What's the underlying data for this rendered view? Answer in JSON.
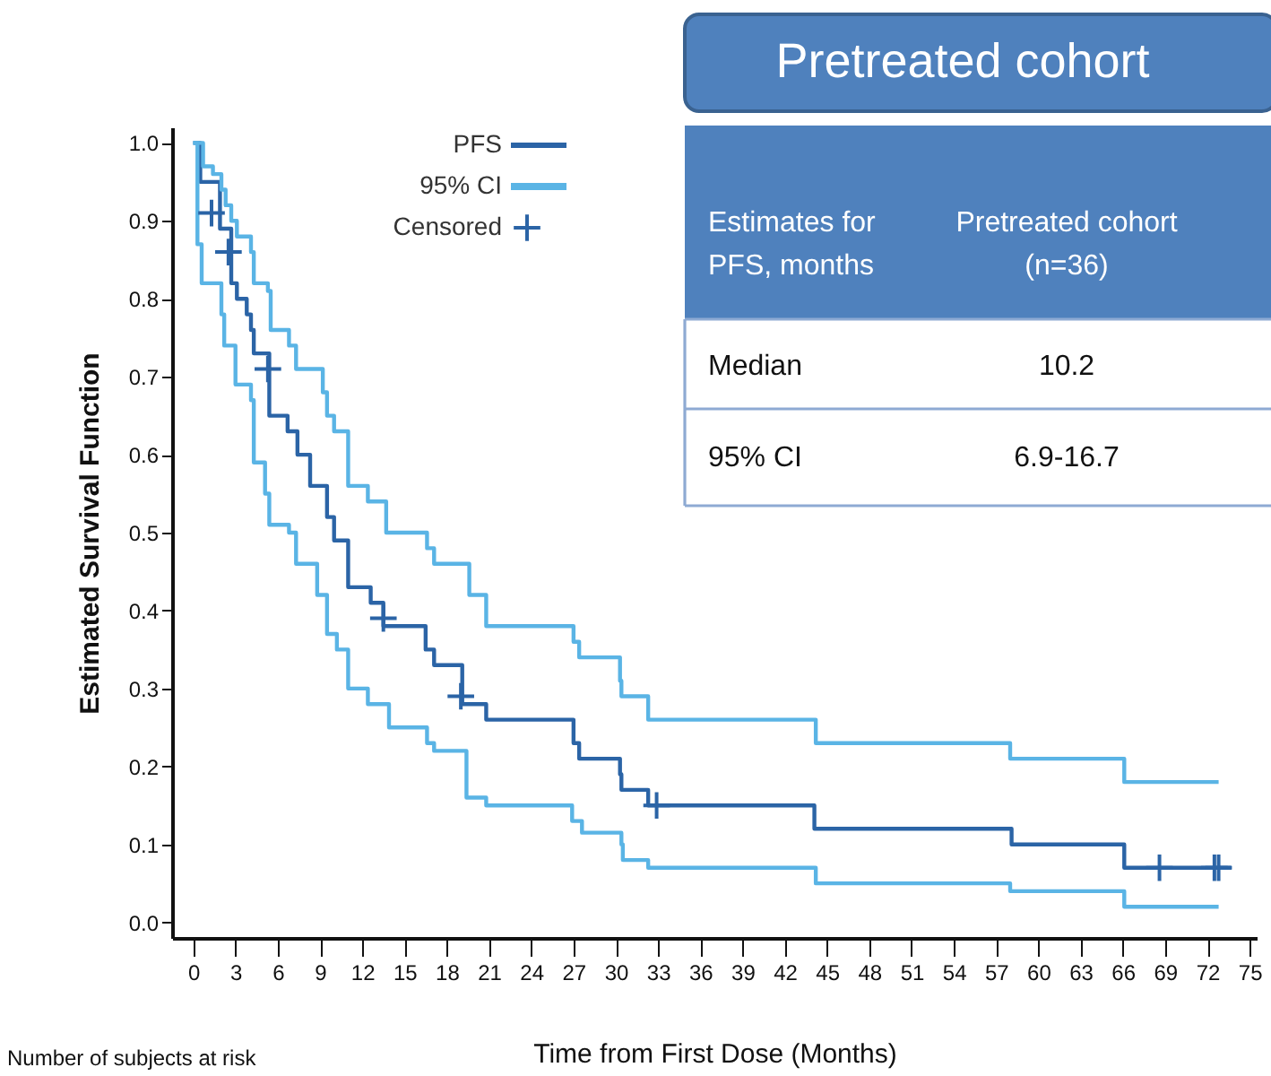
{
  "chart_data": {
    "type": "step",
    "title": "Pretreated cohort",
    "xlabel": "Time from First Dose (Months)",
    "ylabel": "Estimated Survival Function",
    "xlim": [
      -1.5,
      75.5
    ],
    "ylim": [
      -0.02,
      1.02
    ],
    "xticks": [
      0,
      3,
      6,
      9,
      12,
      15,
      18,
      21,
      24,
      27,
      30,
      33,
      36,
      39,
      42,
      45,
      48,
      51,
      54,
      57,
      60,
      63,
      66,
      69,
      72,
      75
    ],
    "yticks": [
      {
        "value": 0,
        "label": "0.0"
      },
      {
        "value": 0.1,
        "label": "0.1"
      },
      {
        "value": 0.2,
        "label": "0.2"
      },
      {
        "value": 0.3,
        "label": "0.3"
      },
      {
        "value": 0.4,
        "label": "0.4"
      },
      {
        "value": 0.5,
        "label": "0.5"
      },
      {
        "value": 0.6,
        "label": "0.6"
      },
      {
        "value": 0.7,
        "label": "0.7"
      },
      {
        "value": 0.8,
        "label": "0.8"
      },
      {
        "value": 0.9,
        "label": "0.9"
      },
      {
        "value": 1,
        "label": "1.0"
      }
    ],
    "grid": false,
    "legend": "top",
    "series": [
      {
        "name": "PFS",
        "color": "#2b64a6",
        "x": [
          0,
          0.5,
          1.9,
          2.7,
          3.1,
          3.8,
          4.1,
          4.3,
          5.4,
          6.7,
          7.4,
          8.3,
          9.5,
          10.0,
          11.0,
          12.6,
          13.5,
          16.5,
          17.1,
          19.1,
          20.8,
          27.0,
          27.4,
          30.3,
          30.4,
          32.3,
          44.1,
          58.1,
          66.1,
          73.7
        ],
        "values": [
          1.0,
          0.95,
          0.89,
          0.82,
          0.8,
          0.78,
          0.76,
          0.73,
          0.65,
          0.63,
          0.6,
          0.56,
          0.52,
          0.49,
          0.43,
          0.41,
          0.38,
          0.35,
          0.33,
          0.28,
          0.26,
          0.23,
          0.21,
          0.19,
          0.17,
          0.15,
          0.12,
          0.1,
          0.07,
          0.07
        ]
      },
      {
        "name": "95% CI",
        "color": "#5ab4e5",
        "x": [
          0,
          0.7,
          1.4,
          2.0,
          2.3,
          2.7,
          3.1,
          4.1,
          4.3,
          5.3,
          5.5,
          6.8,
          7.3,
          9.2,
          9.5,
          10.0,
          11.0,
          12.4,
          13.7,
          16.6,
          17.1,
          19.6,
          20.8,
          27.0,
          27.4,
          30.3,
          30.4,
          32.3,
          44.2,
          58.0,
          66.1,
          72.8
        ],
        "values": [
          1.0,
          0.97,
          0.96,
          0.94,
          0.92,
          0.9,
          0.88,
          0.86,
          0.82,
          0.81,
          0.76,
          0.74,
          0.71,
          0.68,
          0.65,
          0.63,
          0.56,
          0.54,
          0.5,
          0.48,
          0.46,
          0.42,
          0.38,
          0.36,
          0.34,
          0.31,
          0.29,
          0.26,
          0.23,
          0.21,
          0.18,
          0.18
        ]
      },
      {
        "color": "#5ab4e5",
        "x": [
          0,
          0.3,
          0.6,
          2.0,
          2.2,
          3.0,
          4.1,
          4.3,
          5.1,
          5.4,
          6.8,
          7.3,
          8.8,
          9.5,
          10.2,
          11.0,
          12.4,
          13.9,
          16.6,
          17.1,
          19.4,
          20.8,
          26.9,
          27.6,
          30.4,
          30.5,
          32.3,
          44.2,
          58.0,
          66.1,
          72.8
        ],
        "values": [
          1.0,
          0.87,
          0.82,
          0.78,
          0.74,
          0.69,
          0.67,
          0.59,
          0.55,
          0.51,
          0.5,
          0.46,
          0.42,
          0.37,
          0.35,
          0.3,
          0.28,
          0.25,
          0.23,
          0.22,
          0.16,
          0.15,
          0.13,
          0.115,
          0.1,
          0.08,
          0.07,
          0.05,
          0.04,
          0.02,
          0.02
        ]
      },
      {
        "name": "Censored",
        "type": "scatter",
        "marker": "cross",
        "color": "#2b64a6",
        "x": [
          1.3,
          2.5,
          5.3,
          13.5,
          19.0,
          32.9,
          68.6,
          72.5,
          72.8
        ],
        "values": [
          0.91,
          0.86,
          0.71,
          0.39,
          0.29,
          0.15,
          0.07,
          0.07,
          0.07
        ]
      }
    ],
    "annotations": [
      "Estimates for\nPFS, months",
      "Pretreated cohort\n(n=36)",
      "Median",
      "10.2",
      "95% CI",
      "6.9-16.7",
      "Number of subjects at risk"
    ]
  }
}
